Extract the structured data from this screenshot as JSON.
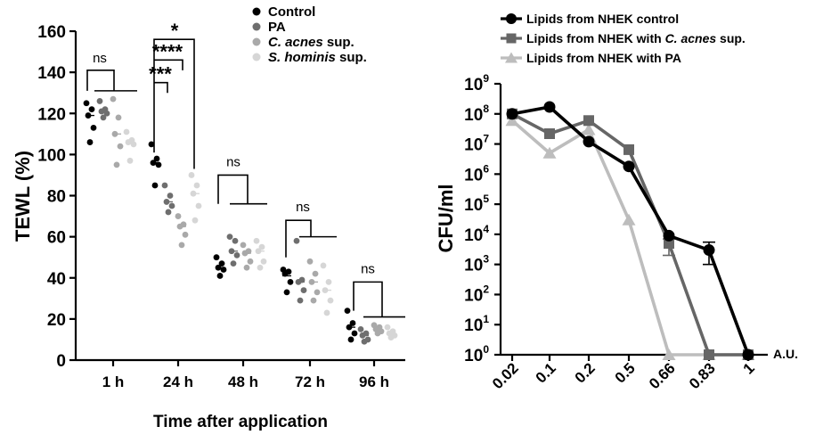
{
  "figure": "Two-panel scientific figure",
  "chart_data": [
    {
      "type": "scatter",
      "panel": "left",
      "title": "",
      "xlabel": "Time after application",
      "ylabel": "TEWL (%)",
      "ylim": [
        0,
        160
      ],
      "yticks": [
        0,
        20,
        40,
        60,
        80,
        100,
        120,
        140,
        160
      ],
      "categories": [
        "1 h",
        "24 h",
        "48 h",
        "72 h",
        "96 h"
      ],
      "legend": [
        {
          "name": "Control",
          "italic": false,
          "color": "#000000"
        },
        {
          "name": "PA",
          "italic": false,
          "color": "#6e6e6e"
        },
        {
          "name": "C. acnes sup.",
          "italic": true,
          "color": "#a9a9a9"
        },
        {
          "name": "S. hominis sup.",
          "italic": true,
          "color": "#d6d6d6"
        }
      ],
      "series": [
        {
          "name": "Control",
          "mean": [
            119,
            96,
            45,
            41,
            16
          ],
          "values": [
            [
              125,
              122,
              119,
              113,
              106
            ],
            [
              105,
              98,
              96,
              95,
              85
            ],
            [
              50,
              47,
              45,
              44,
              41
            ],
            [
              44,
              43,
              42,
              38,
              33
            ],
            [
              24,
              18,
              16,
              13,
              10
            ]
          ]
        },
        {
          "name": "PA",
          "mean": [
            121,
            77,
            53,
            38,
            12
          ],
          "values": [
            [
              126,
              122,
              121,
              120,
              118
            ],
            [
              85,
              80,
              77,
              75,
              72
            ],
            [
              60,
              58,
              53,
              51,
              47
            ],
            [
              58,
              39,
              38,
              34,
              29
            ],
            [
              15,
              13,
              12,
              10,
              9
            ]
          ]
        },
        {
          "name": "C. acnes sup.",
          "mean": [
            110,
            65,
            52,
            38,
            15
          ],
          "values": [
            [
              127,
              118,
              110,
              104,
              95
            ],
            [
              70,
              66,
              65,
              61,
              56
            ],
            [
              56,
              53,
              52,
              48,
              45
            ],
            [
              48,
              42,
              38,
              33,
              29
            ],
            [
              17,
              16,
              15,
              14,
              13
            ]
          ]
        },
        {
          "name": "S. hominis sup.",
          "mean": [
            106,
            81,
            53,
            34,
            13
          ],
          "values": [
            [
              111,
              107,
              106,
              105,
              97
            ],
            [
              90,
              85,
              81,
              75,
              68
            ],
            [
              58,
              55,
              53,
              48,
              45
            ],
            [
              46,
              38,
              34,
              29,
              23
            ],
            [
              16,
              14,
              13,
              12,
              11
            ]
          ]
        }
      ],
      "significance": [
        {
          "time": "1 h",
          "label": "ns"
        },
        {
          "time": "24 h",
          "comparison": "Control vs S. hominis sup.",
          "label": "*"
        },
        {
          "time": "24 h",
          "comparison": "Control vs C. acnes sup.",
          "label": "****"
        },
        {
          "time": "24 h",
          "comparison": "Control vs PA",
          "label": "***"
        },
        {
          "time": "48 h",
          "label": "ns"
        },
        {
          "time": "72 h",
          "label": "ns"
        },
        {
          "time": "96 h",
          "label": "ns"
        }
      ]
    },
    {
      "type": "line",
      "panel": "right",
      "title": "",
      "xlabel": "A.U.",
      "ylabel": "CFU/ml",
      "yscale": "log",
      "ylim_exponent": [
        0,
        9
      ],
      "ytick_base": "10",
      "yticks_exponent": [
        0,
        1,
        2,
        3,
        4,
        5,
        6,
        7,
        8,
        9
      ],
      "x": [
        "0.02",
        "0.1",
        "0.2",
        "0.5",
        "0.66",
        "0.83",
        "1"
      ],
      "series": [
        {
          "name": "Lipids from NHEK control",
          "name_parts": [
            "Lipids from NHEK control",
            "",
            ""
          ],
          "color": "#000000",
          "marker": "circle",
          "values": [
            100000000,
            170000000,
            12000000,
            1800000,
            9000,
            3000,
            1
          ],
          "error_bars": [
            null,
            null,
            null,
            null,
            null,
            [
              1000,
              5500
            ],
            null
          ]
        },
        {
          "name": "Lipids from NHEK with C. acnes sup.",
          "name_parts": [
            "Lipids from NHEK with ",
            "C. acnes",
            " sup."
          ],
          "color": "#666666",
          "marker": "square",
          "values": [
            100000000,
            22000000,
            60000000,
            6500000,
            5000,
            1,
            1
          ],
          "error_bars": [
            null,
            null,
            null,
            null,
            [
              2000,
              7000
            ],
            null,
            null
          ]
        },
        {
          "name": "Lipids from NHEK with PA",
          "name_parts": [
            "Lipids from NHEK with PA",
            "",
            ""
          ],
          "color": "#bdbdbd",
          "marker": "triangle",
          "values": [
            60000000,
            5000000,
            30000000,
            30000,
            1,
            1,
            1
          ],
          "error_bars": [
            null,
            null,
            null,
            null,
            null,
            null,
            null
          ]
        }
      ]
    }
  ]
}
